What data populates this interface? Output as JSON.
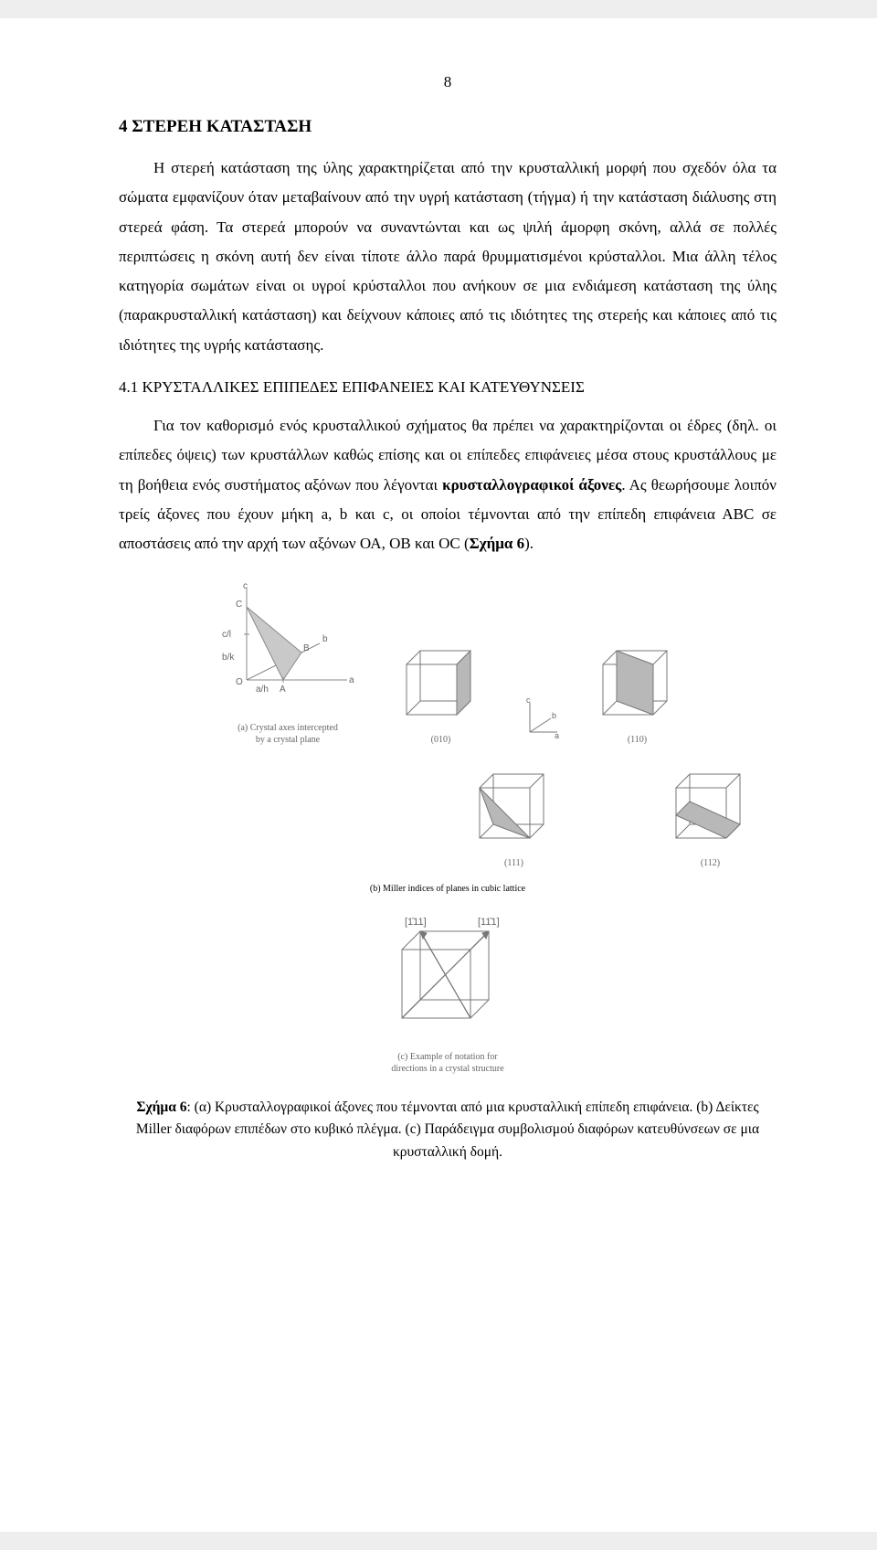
{
  "page_number": "8",
  "heading1": "4  ΣΤΕΡΕΗ  ΚΑΤΑΣΤΑΣΗ",
  "para1": "Η στερεή κατάσταση  της ύλης χαρακτηρίζεται από την κρυσταλλική μορφή που σχεδόν όλα τα σώματα εμφανίζουν όταν μεταβαίνουν από την υγρή κατάσταση (τήγμα)  ή την κατάσταση διάλυσης στη στερεά φάση. Τα στερεά μπορούν να συναντώνται και ως ψιλή άμορφη σκόνη, αλλά σε πολλές περιπτώσεις η σκόνη αυτή δεν είναι τίποτε άλλο παρά θρυμματισμένοι κρύσταλλοι. Μια άλλη τέλος κατηγορία σωμάτων είναι οι υγροί κρύσταλλοι που ανήκουν σε μια ενδιάμεση κατάσταση της ύλης   (παρακρυσταλλική κατάσταση) και δείχνουν κάποιες από τις ιδιότητες της στερεής και κάποιες από τις ιδιότητες της υγρής κατάστασης.",
  "heading2": "4.1 ΚΡΥΣΤΑΛΛΙΚΕΣ ΕΠΙΠΕΔΕΣ ΕΠΙΦΑΝΕΙΕΣ ΚΑΙ ΚΑΤΕΥΘΥΝΣΕΙΣ",
  "para2_a": "Για   τον   καθορισμό   ενός   κρυσταλλικού   σχήματος   θα   πρέπει   να χαρακτηρίζονται οι έδρες (δηλ. οι επίπεδες όψεις) των κρυστάλλων καθώς επίσης και οι επίπεδες επιφάνειες μέσα στους κρυστάλλους με τη βοήθεια ενός συστήματος αξόνων που λέγονται ",
  "para2_bold": "κρυσταλλογραφικοί άξονες",
  "para2_b": ". Ας θεωρήσουμε λοιπόν τρείς άξονες που έχουν μήκη a, b και c, οι οποίοι τέμνονται από την επίπεδη επιφάνεια ΑΒC σε αποστάσεις από την αρχή των αξόνων ΟΑ, ΟΒ και ΟC (",
  "para2_bold2": "Σχήμα 6",
  "para2_c": ").",
  "figure": {
    "axes_labels": {
      "a": "a",
      "b": "b",
      "c": "c",
      "O": "O",
      "A": "A",
      "B": "B",
      "C": "C",
      "ah": "a/h",
      "bk": "b/k",
      "cl": "c/l"
    },
    "sub_a_caption": "(a) Crystal axes intercepted\nby a crystal plane",
    "miller": {
      "p010": "(010)",
      "p110": "(110)",
      "p111": "(111)",
      "p112": "(112)"
    },
    "sub_b_caption": "(b) Miller indices of planes in cubic lattice",
    "dir_labels": {
      "d1": "[1̄11]",
      "d2": "[11̄1]"
    },
    "sub_c_caption": "(c) Example of notation for\ndirections in a crystal structure",
    "colors": {
      "stroke": "#8a8a8a",
      "fill_plane": "#c9c9c9",
      "cube_stroke": "#777777",
      "cube_fill": "#b8b8b8",
      "text": "#666666"
    }
  },
  "caption_a": "Σχήμα 6",
  "caption_b": ": (α) Κρυσταλλογραφικοί άξονες που τέμνονται από μια κρυσταλλική επίπεδη επιφάνεια. (b) Δείκτες Miller διαφόρων επιπέδων στο κυβικό πλέγμα. (c) Παράδειγμα συμβολισμού διαφόρων κατευθύνσεων σε μια κρυσταλλική δομή."
}
